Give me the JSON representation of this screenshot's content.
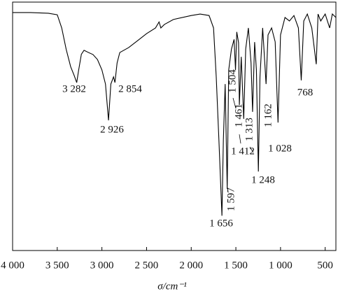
{
  "chart_data": {
    "type": "line",
    "x_label": "σ/cm⁻¹",
    "x": [
      4000,
      3800,
      3600,
      3500,
      3450,
      3400,
      3350,
      3310,
      3282,
      3260,
      3230,
      3200,
      3150,
      3100,
      3050,
      3000,
      2960,
      2926,
      2900,
      2870,
      2854,
      2830,
      2800,
      2700,
      2600,
      2500,
      2400,
      2360,
      2340,
      2300,
      2200,
      2000,
      1900,
      1800,
      1750,
      1720,
      1690,
      1656,
      1640,
      1620,
      1597,
      1580,
      1550,
      1520,
      1504,
      1490,
      1470,
      1461,
      1440,
      1412,
      1390,
      1360,
      1330,
      1313,
      1290,
      1270,
      1248,
      1230,
      1200,
      1162,
      1140,
      1100,
      1060,
      1028,
      1000,
      950,
      900,
      850,
      800,
      768,
      740,
      700,
      650,
      600,
      580,
      550,
      500,
      450,
      420,
      380
    ],
    "series": [
      {
        "color": "#000000",
        "values": [
          95.8,
          95.8,
          95.5,
          94.9,
          89.6,
          81,
          74,
          70.4,
          67.6,
          72.7,
          79,
          80.6,
          79.7,
          78.9,
          76.9,
          72.7,
          67,
          52.4,
          67,
          69.9,
          67.6,
          75.5,
          79.7,
          81.7,
          84.5,
          87.3,
          89.6,
          92,
          89.6,
          91,
          93,
          94.6,
          95.2,
          94.6,
          89.6,
          70,
          44.5,
          14,
          44.5,
          67,
          24.8,
          72.7,
          81,
          85,
          72.7,
          88,
          83.7,
          58.6,
          78,
          53,
          81.1,
          89.6,
          75.5,
          55.8,
          83.9,
          72.7,
          31.8,
          69.9,
          89.6,
          67,
          86.8,
          89.6,
          84,
          51.5,
          86.8,
          93.8,
          92.4,
          94.6,
          89.6,
          68.5,
          92.4,
          95.2,
          89.6,
          75,
          95.2,
          92.4,
          95.2,
          89.6,
          95.2,
          93.8
        ]
      }
    ],
    "xlim": [
      4000,
      380
    ],
    "ylim": [
      0,
      100
    ],
    "xticks": [
      {
        "value": 4000,
        "label": "4 000"
      },
      {
        "value": 3500,
        "label": "3 500"
      },
      {
        "value": 3000,
        "label": "3 000"
      },
      {
        "value": 2500,
        "label": "2 500"
      },
      {
        "value": 2000,
        "label": "2 000"
      },
      {
        "value": 1500,
        "label": "1 500"
      },
      {
        "value": 1000,
        "label": "1 000"
      },
      500
    ],
    "annotations": [
      "3 282",
      "2 926",
      "2 854",
      "1 656",
      "1 597",
      "1 504",
      "1 461",
      "1 412",
      "1 313",
      "1 248",
      "1 162",
      "1 028",
      "768"
    ]
  }
}
